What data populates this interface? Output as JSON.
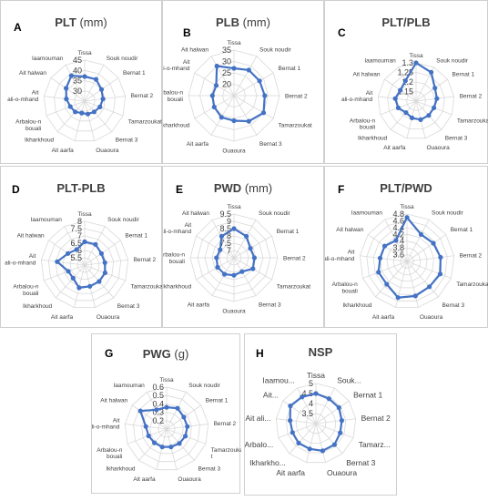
{
  "chart_data": [
    {
      "panel": "A",
      "type": "radar",
      "title": "PLT",
      "unit": "(mm)",
      "categories": [
        "Tissa",
        "Souk noudir",
        "Bernat 1",
        "Bernat 2",
        "Tamarzoukat",
        "Bernat 3",
        "Ouaoura",
        "Ait aarfa",
        "Ikharkhoud",
        "Arbalou-n bouali",
        "Ait ali-o-mhand",
        "Ait halwan",
        "Iaamouman"
      ],
      "ticks": [
        "30",
        "35",
        "40",
        "45"
      ],
      "range": [
        25,
        45
      ],
      "values": [
        37,
        37,
        35,
        34,
        33,
        32,
        31.5,
        31,
        32,
        32.5,
        34,
        36,
        39
      ]
    },
    {
      "panel": "B",
      "type": "radar",
      "title": "PLB",
      "unit": "(mm)",
      "categories": [
        "Tissa",
        "Souk noudir",
        "Bernat 1",
        "Bernat 2",
        "Tamarzoukat",
        "Bernat 3",
        "Ouaoura",
        "Ait aarfa",
        "Ikharkhoud",
        "Arbalou-n bouali",
        "Ait ali-o-mhand",
        "Ait halwan"
      ],
      "ticks": [
        "20",
        "25",
        "30",
        "35"
      ],
      "range": [
        15,
        35
      ],
      "values": [
        27,
        28,
        28,
        28.5,
        30,
        28,
        26,
        26,
        25,
        24.5,
        24,
        30
      ]
    },
    {
      "panel": "C",
      "type": "radar",
      "title": "PLT/PLB",
      "unit": "",
      "categories": [
        "Tissa",
        "Souk noudir",
        "Bernat 1",
        "Bernat 2",
        "Tamarzoukat",
        "Bernat 3",
        "Ouaoura",
        "Ait aarfa",
        "Ikharkhoud",
        "Arbalou-n bouali",
        "Ait ali-o-mhand",
        "Ait halwan",
        "Iaamouman"
      ],
      "ticks": [
        "1.15",
        "1.2",
        "1.25",
        "1.3"
      ],
      "range": [
        1.1,
        1.3
      ],
      "values": [
        1.3,
        1.27,
        1.22,
        1.21,
        1.2,
        1.2,
        1.2,
        1.19,
        1.18,
        1.2,
        1.21,
        1.2,
        1.22
      ]
    },
    {
      "panel": "D",
      "type": "radar",
      "title": "PLT-PLB",
      "unit": "",
      "categories": [
        "Tissa",
        "Souk noudir",
        "Bernat 1",
        "Bernat 2",
        "Tamarzoukat",
        "Bernat 3",
        "Ouaoura",
        "Ait aarfa",
        "Ikharkhoud",
        "Arbalou-n bouali",
        "Ait ali-o-mhand",
        "Ait halwan",
        "Iaamouman"
      ],
      "ticks": [
        "5.5",
        "6",
        "6.5",
        "7",
        "7.5",
        "8"
      ],
      "range": [
        5,
        8
      ],
      "values": [
        6.6,
        6.6,
        6.4,
        6.4,
        6.5,
        6.5,
        6.5,
        6.6,
        6.2,
        6.2,
        6.9,
        6.4,
        6.2
      ]
    },
    {
      "panel": "E",
      "type": "radar",
      "title": "PWD",
      "unit": "(mm)",
      "categories": [
        "Tissa",
        "Souk noudir",
        "Bernat 1",
        "Bernat 2",
        "Tamarzoukat",
        "Bernat 3",
        "Ouaoura",
        "Ait aarfa",
        "Ikharkhoud",
        "Arbalou-n bouali",
        "Ait ali-o-mhand",
        "Ait halwan"
      ],
      "ticks": [
        "7",
        "7.5",
        "8",
        "8.5",
        "9",
        "9.5"
      ],
      "range": [
        6.5,
        9.5
      ],
      "values": [
        8.5,
        8.2,
        7.8,
        7.9,
        8.0,
        7.6,
        7.7,
        7.8,
        7.8,
        7.7,
        7.6,
        8.2
      ]
    },
    {
      "panel": "F",
      "type": "radar",
      "title": "PLT/PWD",
      "unit": "",
      "categories": [
        "Tissa",
        "Souk noudir",
        "Bernat 1",
        "Bernat 2",
        "Tamarzoukat",
        "Bernat 3",
        "Ouaoura",
        "Ait aarfa",
        "Ikharkhoud",
        "Arbalou-n bouali",
        "Ait ali-o-mhand",
        "Ait halwan",
        "Iaamouman"
      ],
      "ticks": [
        "3.6",
        "3.8",
        "4",
        "4.2",
        "4.4",
        "4.6",
        "4.8"
      ],
      "range": [
        3.4,
        4.8
      ],
      "values": [
        4.7,
        4.3,
        4.35,
        4.4,
        4.45,
        4.4,
        4.45,
        4.5,
        4.3,
        4.3,
        4.2,
        4.2,
        4.1
      ]
    },
    {
      "panel": "G",
      "type": "radar",
      "title": "PWG",
      "unit": "(g)",
      "categories": [
        "Tissa",
        "Souk noudir",
        "Bernat 1",
        "Bernat 2",
        "Tamarzouka t",
        "Bernat 3",
        "Ouaoura",
        "Ait aarfa",
        "Ikharkhoud",
        "Arbalou-n bouali",
        "Ait ali-o-mhand",
        "Ait halwan",
        "Iaamouman"
      ],
      "ticks": [
        "0.2",
        "0.3",
        "0.4",
        "0.5",
        "0.6"
      ],
      "range": [
        0.1,
        0.6
      ],
      "values": [
        0.36,
        0.38,
        0.35,
        0.35,
        0.34,
        0.33,
        0.32,
        0.32,
        0.32,
        0.33,
        0.35,
        0.48,
        0.36
      ]
    },
    {
      "panel": "H",
      "type": "radar",
      "title": "NSP",
      "unit": "",
      "categories": [
        "Tissa",
        "Souk...",
        "Bernat 1",
        "Bernat 2",
        "Tamarz...",
        "Bernat 3",
        "Ouaoura",
        "Ait aarfa",
        "Ikharkho...",
        "Arbalo...",
        "Ait ali...",
        "Ait...",
        "Iaamou..."
      ],
      "ticks": [
        "3.5",
        "4",
        "4.5",
        "5"
      ],
      "range": [
        3,
        5
      ],
      "values": [
        4.5,
        4.4,
        4.4,
        4.3,
        4.3,
        4.4,
        4.4,
        4.3,
        4.3,
        4.25,
        4.3,
        4.55,
        4.5
      ]
    }
  ]
}
